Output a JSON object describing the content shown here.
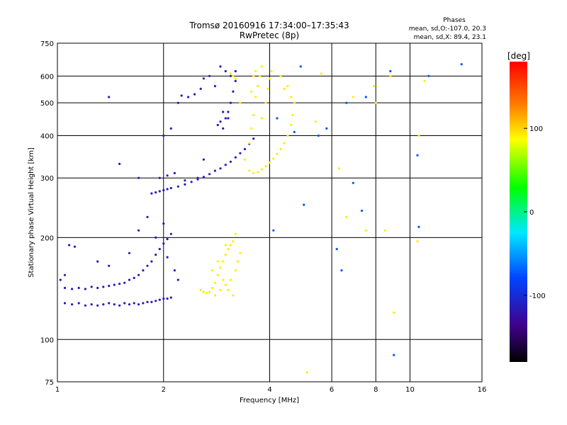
{
  "chart_data": {
    "type": "scatter",
    "title": "Tromsø 20160916 17:34:00–17:35:43",
    "subtitle": "RwPretec (8p)",
    "xlabel": "Frequency [MHz]",
    "ylabel": "Stationary phase Virtual Height [km]",
    "x_scale": "log",
    "y_scale": "log",
    "xlim": [
      1,
      16
    ],
    "ylim": [
      75,
      750
    ],
    "x_ticks": [
      1,
      2,
      4,
      6,
      8,
      10,
      16
    ],
    "y_ticks": [
      75,
      100,
      200,
      300,
      400,
      500,
      600,
      750
    ],
    "grid": true,
    "stats": {
      "header": "Phases",
      "line1": "mean, sd,O:-107.0, 20.3",
      "line2": "mean, sd,X:  89.4, 23.1"
    },
    "colorbar": {
      "label": "[deg]",
      "min": -180,
      "max": 180,
      "ticks": [
        100,
        0,
        -100
      ]
    },
    "series": [
      {
        "points": [
          [
            1.05,
            128
          ],
          [
            1.1,
            127
          ],
          [
            1.15,
            128
          ],
          [
            1.2,
            126
          ],
          [
            1.25,
            127
          ],
          [
            1.3,
            126
          ],
          [
            1.35,
            127
          ],
          [
            1.4,
            128
          ],
          [
            1.45,
            127
          ],
          [
            1.5,
            126
          ],
          [
            1.55,
            128
          ],
          [
            1.6,
            127
          ],
          [
            1.65,
            128
          ],
          [
            1.7,
            127
          ],
          [
            1.75,
            128
          ],
          [
            1.8,
            129
          ],
          [
            1.85,
            129
          ],
          [
            1.9,
            130
          ],
          [
            1.95,
            131
          ],
          [
            2.0,
            132
          ],
          [
            2.05,
            132
          ],
          [
            2.1,
            133
          ],
          [
            1.05,
            142
          ],
          [
            1.1,
            141
          ],
          [
            1.15,
            142
          ],
          [
            1.2,
            141
          ],
          [
            1.25,
            143
          ],
          [
            1.3,
            142
          ],
          [
            1.35,
            143
          ],
          [
            1.4,
            144
          ],
          [
            1.45,
            145
          ],
          [
            1.5,
            146
          ],
          [
            1.55,
            147
          ],
          [
            1.6,
            150
          ],
          [
            1.65,
            152
          ],
          [
            1.7,
            155
          ],
          [
            1.75,
            160
          ],
          [
            1.8,
            165
          ],
          [
            1.85,
            170
          ],
          [
            1.9,
            178
          ],
          [
            1.95,
            185
          ],
          [
            2.0,
            192
          ],
          [
            2.05,
            198
          ],
          [
            2.1,
            205
          ],
          [
            1.02,
            150
          ],
          [
            1.05,
            155
          ],
          [
            1.08,
            190
          ],
          [
            1.12,
            188
          ],
          [
            1.3,
            170
          ],
          [
            1.4,
            165
          ],
          [
            1.6,
            180
          ],
          [
            1.7,
            210
          ],
          [
            1.8,
            230
          ],
          [
            1.9,
            200
          ],
          [
            2.0,
            220
          ],
          [
            2.05,
            175
          ],
          [
            2.15,
            160
          ],
          [
            2.2,
            150
          ],
          [
            1.85,
            270
          ],
          [
            1.9,
            272
          ],
          [
            1.95,
            274
          ],
          [
            2.0,
            276
          ],
          [
            2.05,
            278
          ],
          [
            2.1,
            280
          ],
          [
            2.2,
            283
          ],
          [
            2.3,
            287
          ],
          [
            2.4,
            292
          ],
          [
            2.5,
            297
          ],
          [
            2.6,
            302
          ],
          [
            2.7,
            308
          ],
          [
            2.8,
            315
          ],
          [
            2.9,
            320
          ],
          [
            3.0,
            328
          ],
          [
            3.1,
            335
          ],
          [
            3.2,
            345
          ],
          [
            3.3,
            355
          ],
          [
            3.4,
            365
          ],
          [
            3.5,
            378
          ],
          [
            3.6,
            392
          ],
          [
            1.95,
            300
          ],
          [
            2.05,
            305
          ],
          [
            2.15,
            310
          ],
          [
            2.3,
            295
          ],
          [
            2.5,
            300
          ],
          [
            2.6,
            340
          ],
          [
            2.8,
            560
          ],
          [
            3.0,
            620
          ],
          [
            2.9,
            640
          ],
          [
            2.7,
            600
          ],
          [
            2.6,
            590
          ],
          [
            2.85,
            430
          ],
          [
            2.9,
            440
          ],
          [
            2.95,
            420
          ],
          [
            3.0,
            450
          ],
          [
            3.05,
            470
          ],
          [
            3.1,
            500
          ],
          [
            3.15,
            540
          ],
          [
            3.2,
            580
          ],
          [
            3.1,
            600
          ],
          [
            3.2,
            620
          ],
          [
            3.05,
            450
          ],
          [
            2.95,
            470
          ],
          [
            2.35,
            520
          ],
          [
            2.45,
            530
          ],
          [
            2.55,
            550
          ],
          [
            2.25,
            525
          ],
          [
            1.4,
            520
          ],
          [
            1.5,
            330
          ],
          [
            1.7,
            300
          ],
          [
            2.0,
            400
          ],
          [
            2.1,
            420
          ],
          [
            2.2,
            500
          ]
        ]
      },
      {
        "points": [
          [
            2.55,
            140
          ],
          [
            2.6,
            138
          ],
          [
            2.65,
            137
          ],
          [
            2.7,
            138
          ],
          [
            2.75,
            142
          ],
          [
            2.8,
            147
          ],
          [
            2.85,
            155
          ],
          [
            2.9,
            163
          ],
          [
            2.95,
            170
          ],
          [
            3.0,
            178
          ],
          [
            3.05,
            185
          ],
          [
            3.1,
            190
          ],
          [
            3.15,
            195
          ],
          [
            3.2,
            205
          ],
          [
            2.8,
            135
          ],
          [
            2.9,
            140
          ],
          [
            3.0,
            145
          ],
          [
            3.1,
            150
          ],
          [
            3.2,
            160
          ],
          [
            3.25,
            170
          ],
          [
            3.3,
            180
          ],
          [
            3.15,
            135
          ],
          [
            3.05,
            140
          ],
          [
            3.0,
            190
          ],
          [
            2.95,
            150
          ],
          [
            2.85,
            170
          ],
          [
            2.75,
            160
          ],
          [
            3.5,
            380
          ],
          [
            3.55,
            420
          ],
          [
            3.6,
            460
          ],
          [
            3.65,
            520
          ],
          [
            3.7,
            560
          ],
          [
            3.75,
            600
          ],
          [
            3.8,
            640
          ],
          [
            3.65,
            620
          ],
          [
            3.55,
            540
          ],
          [
            3.6,
            600
          ],
          [
            3.8,
            450
          ],
          [
            3.9,
            500
          ],
          [
            3.95,
            550
          ],
          [
            4.0,
            590
          ],
          [
            4.05,
            620
          ],
          [
            3.15,
            600
          ],
          [
            3.2,
            590
          ],
          [
            3.1,
            610
          ],
          [
            3.3,
            500
          ],
          [
            3.4,
            340
          ],
          [
            3.5,
            315
          ],
          [
            3.6,
            310
          ],
          [
            3.7,
            312
          ],
          [
            3.8,
            318
          ],
          [
            3.9,
            325
          ],
          [
            4.0,
            333
          ],
          [
            4.1,
            342
          ],
          [
            4.2,
            353
          ],
          [
            4.3,
            365
          ],
          [
            4.4,
            380
          ],
          [
            4.5,
            400
          ],
          [
            4.6,
            430
          ],
          [
            4.65,
            460
          ],
          [
            4.7,
            500
          ],
          [
            4.4,
            550
          ],
          [
            4.5,
            560
          ],
          [
            4.6,
            520
          ],
          [
            4.3,
            600
          ],
          [
            5.4,
            440
          ],
          [
            6.3,
            320
          ],
          [
            6.6,
            230
          ],
          [
            6.9,
            520
          ],
          [
            7.5,
            210
          ],
          [
            7.9,
            560
          ],
          [
            8.0,
            500
          ],
          [
            8.8,
            600
          ],
          [
            8.5,
            210
          ],
          [
            9.0,
            120
          ],
          [
            10.5,
            195
          ],
          [
            10.6,
            400
          ],
          [
            11.0,
            580
          ],
          [
            5.6,
            610
          ],
          [
            5.1,
            80
          ]
        ]
      },
      {
        "points": [
          [
            4.9,
            640
          ],
          [
            5.5,
            400
          ],
          [
            5.8,
            420
          ],
          [
            6.2,
            185
          ],
          [
            6.4,
            160
          ],
          [
            6.6,
            500
          ],
          [
            6.9,
            290
          ],
          [
            7.3,
            240
          ],
          [
            7.5,
            520
          ],
          [
            8.8,
            620
          ],
          [
            9.0,
            90
          ],
          [
            10.5,
            350
          ],
          [
            10.6,
            215
          ],
          [
            11.3,
            600
          ],
          [
            14.0,
            650
          ],
          [
            5.0,
            250
          ],
          [
            4.7,
            410
          ],
          [
            4.2,
            450
          ],
          [
            4.1,
            210
          ]
        ]
      }
    ]
  }
}
